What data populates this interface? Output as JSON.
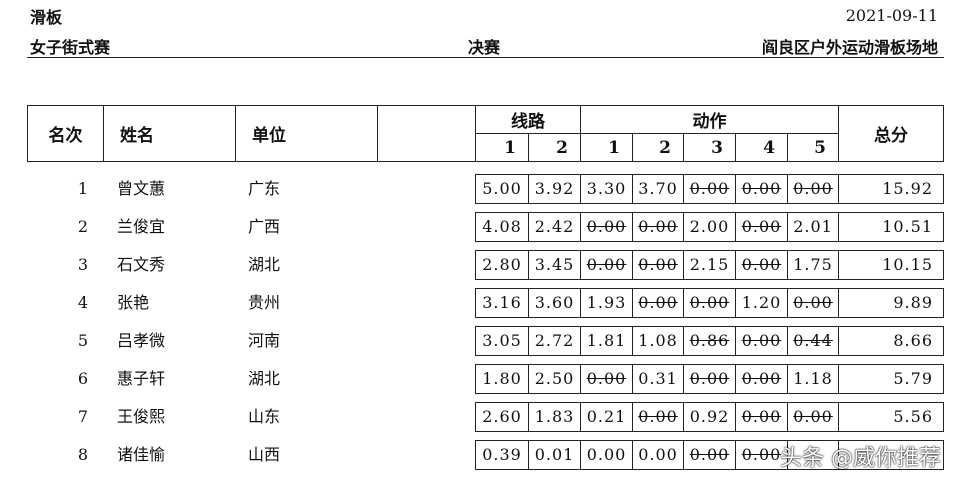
{
  "header": {
    "sport": "滑板",
    "event": "女子街式赛",
    "round": "决赛",
    "date": "2021-09-11",
    "venue": "阎良区户外运动滑板场地"
  },
  "table": {
    "headers": {
      "rank": "名次",
      "name": "姓名",
      "unit": "单位",
      "route": "线路",
      "route_cols": [
        "1",
        "2"
      ],
      "trick": "动作",
      "trick_cols": [
        "1",
        "2",
        "3",
        "4",
        "5"
      ],
      "total": "总分"
    },
    "rows": [
      {
        "rank": "1",
        "name": "曾文蕙",
        "unit": "广东",
        "route": [
          "5.00",
          "3.92"
        ],
        "trick": [
          "3.30",
          "3.70",
          "0.00",
          "0.00",
          "0.00"
        ],
        "struck": [
          false,
          false,
          true,
          true,
          true
        ],
        "total": "15.92"
      },
      {
        "rank": "2",
        "name": "兰俊宜",
        "unit": "广西",
        "route": [
          "4.08",
          "2.42"
        ],
        "trick": [
          "0.00",
          "0.00",
          "2.00",
          "0.00",
          "2.01"
        ],
        "struck": [
          true,
          true,
          false,
          true,
          false
        ],
        "total": "10.51"
      },
      {
        "rank": "3",
        "name": "石文秀",
        "unit": "湖北",
        "route": [
          "2.80",
          "3.45"
        ],
        "trick": [
          "0.00",
          "0.00",
          "2.15",
          "0.00",
          "1.75"
        ],
        "struck": [
          true,
          true,
          false,
          true,
          false
        ],
        "total": "10.15"
      },
      {
        "rank": "4",
        "name": "张艳",
        "unit": "贵州",
        "route": [
          "3.16",
          "3.60"
        ],
        "trick": [
          "1.93",
          "0.00",
          "0.00",
          "1.20",
          "0.00"
        ],
        "struck": [
          false,
          true,
          true,
          false,
          true
        ],
        "total": "9.89"
      },
      {
        "rank": "5",
        "name": "吕孝微",
        "unit": "河南",
        "route": [
          "3.05",
          "2.72"
        ],
        "trick": [
          "1.81",
          "1.08",
          "0.86",
          "0.00",
          "0.44"
        ],
        "struck": [
          false,
          false,
          true,
          true,
          true
        ],
        "total": "8.66"
      },
      {
        "rank": "6",
        "name": "惠子轩",
        "unit": "湖北",
        "route": [
          "1.80",
          "2.50"
        ],
        "trick": [
          "0.00",
          "0.31",
          "0.00",
          "0.00",
          "1.18"
        ],
        "struck": [
          true,
          false,
          true,
          true,
          false
        ],
        "total": "5.79"
      },
      {
        "rank": "7",
        "name": "王俊熙",
        "unit": "山东",
        "route": [
          "2.60",
          "1.83"
        ],
        "trick": [
          "0.21",
          "0.00",
          "0.92",
          "0.00",
          "0.00"
        ],
        "struck": [
          false,
          true,
          false,
          true,
          true
        ],
        "total": "5.56"
      },
      {
        "rank": "8",
        "name": "诸佳愉",
        "unit": "山西",
        "route": [
          "0.39",
          "0.01"
        ],
        "trick": [
          "0.00",
          "0.00",
          "0.00",
          "0.00",
          ""
        ],
        "struck": [
          false,
          false,
          true,
          true,
          false
        ],
        "total": ""
      }
    ]
  },
  "watermark": "头条 @威你推荐"
}
